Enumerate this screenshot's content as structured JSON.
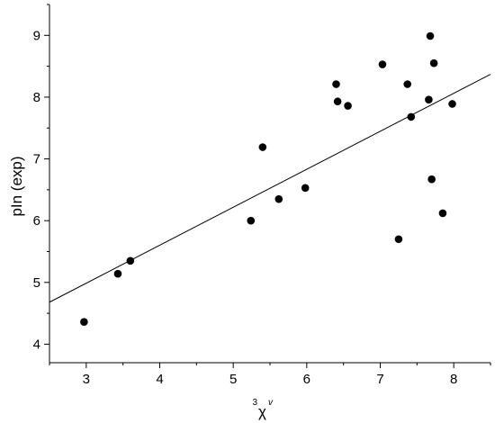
{
  "chart_data": {
    "type": "scatter",
    "title": "",
    "xlabel_superscript": "3",
    "xlabel_symbol": "χ",
    "xlabel_superscript_right": "v",
    "ylabel": "pIn (exp)",
    "xlim": [
      2.5,
      8.5
    ],
    "ylim": [
      3.7,
      9.5
    ],
    "xticks": [
      "3",
      "4",
      "5",
      "6",
      "7",
      "8"
    ],
    "yticks": [
      "4",
      "5",
      "6",
      "7",
      "8",
      "9"
    ],
    "grid": false,
    "points": [
      {
        "x": 2.97,
        "y": 4.36
      },
      {
        "x": 3.43,
        "y": 5.14
      },
      {
        "x": 3.6,
        "y": 5.35
      },
      {
        "x": 5.24,
        "y": 6.0
      },
      {
        "x": 5.4,
        "y": 7.19
      },
      {
        "x": 5.62,
        "y": 6.35
      },
      {
        "x": 5.98,
        "y": 6.53
      },
      {
        "x": 6.4,
        "y": 8.21
      },
      {
        "x": 6.42,
        "y": 7.93
      },
      {
        "x": 6.56,
        "y": 7.86
      },
      {
        "x": 7.03,
        "y": 8.53
      },
      {
        "x": 7.25,
        "y": 5.7
      },
      {
        "x": 7.37,
        "y": 8.21
      },
      {
        "x": 7.42,
        "y": 7.68
      },
      {
        "x": 7.66,
        "y": 7.96
      },
      {
        "x": 7.68,
        "y": 8.99
      },
      {
        "x": 7.7,
        "y": 6.67
      },
      {
        "x": 7.73,
        "y": 8.55
      },
      {
        "x": 7.85,
        "y": 6.12
      },
      {
        "x": 7.98,
        "y": 7.89
      }
    ],
    "fit_line": {
      "x": [
        2.5,
        8.5
      ],
      "y": [
        4.68,
        8.37
      ]
    }
  }
}
